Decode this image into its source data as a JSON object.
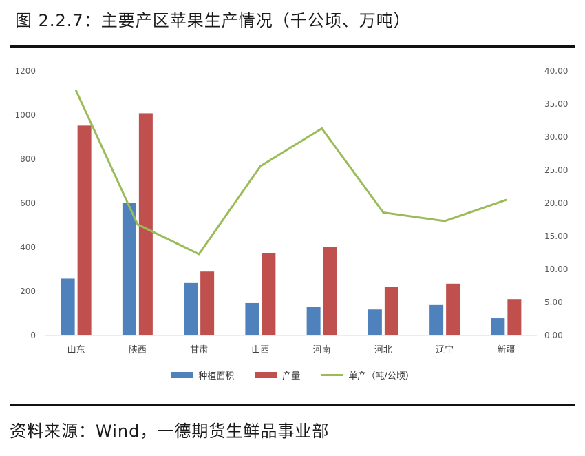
{
  "title": "图 2.2.7：主要产区苹果生产情况（千公顷、万吨）",
  "source": "资料来源：Wind，一德期货生鲜品事业部",
  "colors": {
    "area": "#4f81bd",
    "production": "#c0504d",
    "yield": "#9bbb59"
  },
  "chart_data": {
    "type": "bar",
    "categories": [
      "山东",
      "陕西",
      "甘肃",
      "山西",
      "河南",
      "河北",
      "辽宁",
      "新疆"
    ],
    "series": [
      {
        "name": "种植面积",
        "kind": "bar",
        "axis": "left",
        "values": [
          258,
          600,
          238,
          147,
          130,
          118,
          138,
          78
        ]
      },
      {
        "name": "产量",
        "kind": "bar",
        "axis": "left",
        "values": [
          952,
          1008,
          290,
          375,
          400,
          220,
          235,
          165
        ]
      },
      {
        "name": "单产（吨/公顷）",
        "kind": "line",
        "axis": "right",
        "values": [
          37.0,
          16.8,
          12.3,
          25.6,
          31.3,
          18.6,
          17.3,
          20.5
        ]
      }
    ],
    "yleft": {
      "min": 0,
      "max": 1200,
      "ticks": [
        "0",
        "200",
        "400",
        "600",
        "800",
        "1000",
        "1200"
      ]
    },
    "yright": {
      "min": 0,
      "max": 40,
      "ticks": [
        "0.00",
        "5.00",
        "10.00",
        "15.00",
        "20.00",
        "25.00",
        "30.00",
        "35.00",
        "40.00"
      ]
    },
    "legend": "bottom",
    "grid": false
  }
}
